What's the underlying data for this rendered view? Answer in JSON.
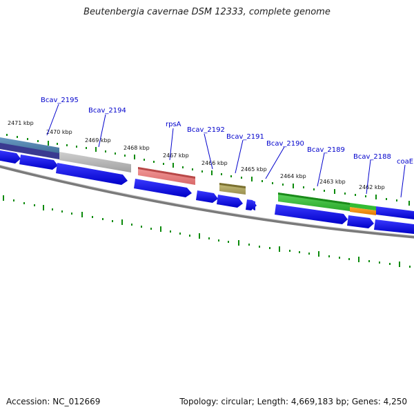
{
  "title": "Beutenbergia cavernae DSM 12333, complete genome",
  "accession": "Accession: NC_012669",
  "summary": "Topology: circular; Length: 4,669,183 bp; Genes: 4,250",
  "colors": {
    "forward_cds": "#0a0ae6",
    "tick": "#0a8a0a",
    "backbone": "#808080",
    "label_line": "#0000cc",
    "label_text": "#0000cc"
  },
  "kbp_labels": [
    "2471 kbp",
    "2470 kbp",
    "2469 kbp",
    "2468 kbp",
    "2467 kbp",
    "2466 kbp",
    "2465 kbp",
    "2464 kbp",
    "2463 kbp",
    "2462 kbp"
  ],
  "genes": [
    {
      "label": "Bcav_2195",
      "feature_color": "#4a7aa6"
    },
    {
      "label": "Bcav_2194",
      "feature_color": "#b4b4b4"
    },
    {
      "label": "rpsA",
      "feature_color": "#e06a6a"
    },
    {
      "label": "Bcav_2192",
      "feature_color": ""
    },
    {
      "label": "Bcav_2191",
      "feature_color": "#a8a060"
    },
    {
      "label": "Bcav_2190",
      "feature_color": ""
    },
    {
      "label": "Bcav_2189",
      "feature_color": "#3cb83c"
    },
    {
      "label": "Bcav_2188",
      "feature_color": "#f08a10"
    },
    {
      "label": "coaE",
      "feature_color": ""
    }
  ]
}
